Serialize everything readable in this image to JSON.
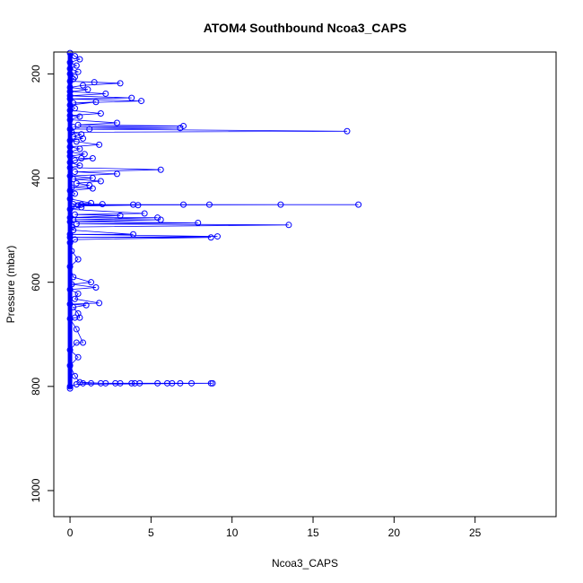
{
  "chart_data": {
    "type": "line",
    "title": "ATOM4 Southbound Ncoa3_CAPS",
    "xlabel": "Ncoa3_CAPS",
    "ylabel": "Pressure (mbar)",
    "xlim": [
      -1,
      30
    ],
    "ylim": [
      1050,
      158
    ],
    "y_inverted": true,
    "x_ticks": [
      0,
      5,
      10,
      15,
      20,
      25
    ],
    "y_ticks": [
      200,
      400,
      600,
      800,
      1000
    ],
    "grid": false,
    "legend": "none",
    "series_color": "#0000ff",
    "series": [
      {
        "values_note": "",
        "points": [
          [
            0,
            160
          ],
          [
            0.3,
            166
          ],
          [
            0.6,
            172
          ],
          [
            0,
            178
          ],
          [
            0.4,
            184
          ],
          [
            0,
            190
          ],
          [
            0.5,
            196
          ],
          [
            0,
            200
          ],
          [
            0.3,
            206
          ],
          [
            0.2,
            210
          ],
          [
            0,
            214
          ],
          [
            1.5,
            216
          ],
          [
            3.1,
            218
          ],
          [
            0.8,
            222
          ],
          [
            0,
            226
          ],
          [
            1.1,
            230
          ],
          [
            0,
            234
          ],
          [
            2.2,
            238
          ],
          [
            0,
            242
          ],
          [
            3.8,
            246
          ],
          [
            0,
            248
          ],
          [
            4.4,
            252
          ],
          [
            0.2,
            256
          ],
          [
            1.6,
            254
          ],
          [
            0,
            260
          ],
          [
            0.3,
            266
          ],
          [
            0,
            270
          ],
          [
            1.9,
            276
          ],
          [
            0,
            280
          ],
          [
            0.6,
            282
          ],
          [
            0,
            288
          ],
          [
            2.9,
            294
          ],
          [
            0.5,
            298
          ],
          [
            7.0,
            300
          ],
          [
            0.2,
            302
          ],
          [
            6.8,
            304
          ],
          [
            1.2,
            306
          ],
          [
            0,
            306
          ],
          [
            17.1,
            310
          ],
          [
            0.1,
            312
          ],
          [
            0.7,
            316
          ],
          [
            0.2,
            320
          ],
          [
            0.8,
            324
          ],
          [
            0,
            328
          ],
          [
            0.4,
            330
          ],
          [
            1.8,
            336
          ],
          [
            0,
            340
          ],
          [
            0.6,
            344
          ],
          [
            0,
            350
          ],
          [
            0.9,
            354
          ],
          [
            0,
            358
          ],
          [
            0.7,
            362
          ],
          [
            1.4,
            362
          ],
          [
            0.3,
            366
          ],
          [
            0,
            370
          ],
          [
            0.6,
            376
          ],
          [
            0,
            380
          ],
          [
            5.6,
            384
          ],
          [
            0.3,
            388
          ],
          [
            2.9,
            392
          ],
          [
            0,
            396
          ],
          [
            1.4,
            400
          ],
          [
            0.2,
            402
          ],
          [
            1.9,
            406
          ],
          [
            0.4,
            410
          ],
          [
            1.2,
            414
          ],
          [
            0.1,
            418
          ],
          [
            1.4,
            420
          ],
          [
            0,
            424
          ],
          [
            0.3,
            430
          ],
          [
            0,
            440
          ],
          [
            1.3,
            448
          ],
          [
            0.2,
            450
          ],
          [
            2.0,
            450
          ],
          [
            0.7,
            451
          ],
          [
            17.8,
            451
          ],
          [
            3.9,
            451
          ],
          [
            7.0,
            451
          ],
          [
            8.6,
            451
          ],
          [
            13.0,
            451
          ],
          [
            0.5,
            452
          ],
          [
            4.2,
            452
          ],
          [
            0.1,
            454
          ],
          [
            0.7,
            456
          ],
          [
            0,
            460
          ],
          [
            4.6,
            468
          ],
          [
            0.3,
            470
          ],
          [
            3.1,
            472
          ],
          [
            0,
            476
          ],
          [
            5.4,
            476
          ],
          [
            0.2,
            480
          ],
          [
            5.6,
            480
          ],
          [
            0,
            484
          ],
          [
            7.9,
            486
          ],
          [
            0.4,
            488
          ],
          [
            13.5,
            490
          ],
          [
            0.1,
            494
          ],
          [
            0.2,
            500
          ],
          [
            3.9,
            508
          ],
          [
            0,
            508
          ],
          [
            9.1,
            512
          ],
          [
            0,
            514
          ],
          [
            8.7,
            514
          ],
          [
            0.3,
            518
          ],
          [
            0,
            524
          ],
          [
            0.1,
            540
          ],
          [
            0.5,
            556
          ],
          [
            0,
            570
          ],
          [
            0.2,
            590
          ],
          [
            1.3,
            600
          ],
          [
            0.1,
            604
          ],
          [
            1.6,
            610
          ],
          [
            0,
            614
          ],
          [
            0.5,
            622
          ],
          [
            0.3,
            632
          ],
          [
            1.8,
            640
          ],
          [
            0,
            642
          ],
          [
            1.0,
            644
          ],
          [
            0.2,
            648
          ],
          [
            0.5,
            660
          ],
          [
            0.6,
            668
          ],
          [
            0.3,
            668
          ],
          [
            0,
            670
          ],
          [
            0.4,
            690
          ],
          [
            0.8,
            716
          ],
          [
            0.4,
            716
          ],
          [
            0,
            730
          ],
          [
            0.5,
            744
          ],
          [
            0,
            760
          ],
          [
            0.3,
            780
          ],
          [
            0.6,
            792
          ],
          [
            1.9,
            794
          ],
          [
            4.3,
            794
          ],
          [
            6.0,
            794
          ],
          [
            8.7,
            794
          ],
          [
            2.2,
            794
          ],
          [
            3.8,
            794
          ],
          [
            5.4,
            794
          ],
          [
            6.8,
            794
          ],
          [
            7.5,
            794
          ],
          [
            0.8,
            794
          ],
          [
            1.3,
            794
          ],
          [
            2.8,
            794
          ],
          [
            3.1,
            794
          ],
          [
            4.0,
            794
          ],
          [
            6.3,
            794
          ],
          [
            8.8,
            794
          ],
          [
            0.4,
            796
          ],
          [
            0,
            800
          ],
          [
            0,
            804
          ]
        ]
      }
    ]
  }
}
